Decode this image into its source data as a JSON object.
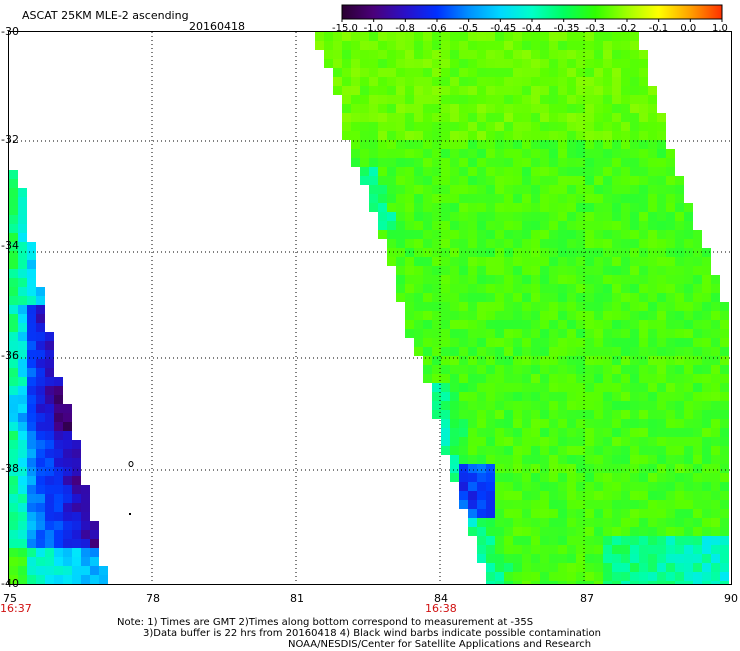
{
  "header": {
    "title": "ASCAT 25KM MLE-2 ascending",
    "date": "20160418"
  },
  "colorbar": {
    "labels": [
      "-15.0",
      "-1.0",
      "-0.8",
      "-0.6",
      "-0.5",
      "-0.45",
      "-0.4",
      "-0.35",
      "-0.3",
      "-0.2",
      "-0.1",
      "0.0",
      "1.0"
    ],
    "colors": [
      "#2a0030",
      "#4a007a",
      "#2a10c8",
      "#0030ff",
      "#0090ff",
      "#00d8ff",
      "#00ffc8",
      "#00ff60",
      "#30ff00",
      "#a0ff00",
      "#ffff00",
      "#ffa000",
      "#ff3000"
    ]
  },
  "axes": {
    "x_ticks": [
      "75",
      "78",
      "81",
      "84",
      "87",
      "90"
    ],
    "y_ticks": [
      "-30",
      "-32",
      "-34",
      "-36",
      "-38",
      "-40"
    ],
    "time_labels": [
      "16:37",
      "16:38"
    ]
  },
  "notes": {
    "line1": "Note: 1) Times are GMT 2)Times along bottom correspond to measurement at -35S",
    "line2": "3)Data buffer is 22 hrs from 20160418 4) Black wind barbs indicate possible contamination",
    "line3": "NOAA/NESDIS/Center for Satellite Applications and Research"
  }
}
